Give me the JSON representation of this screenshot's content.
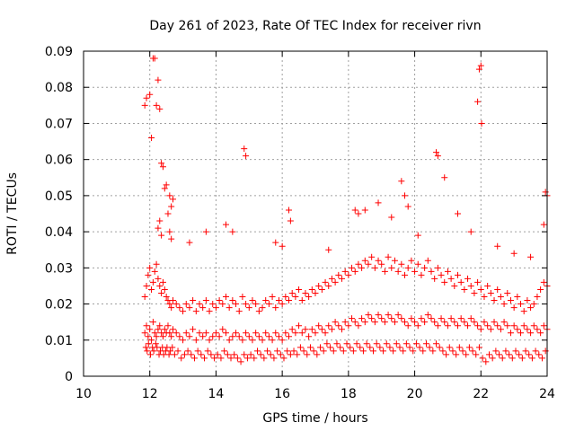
{
  "chart_data": {
    "type": "scatter",
    "title": "Day 261 of 2023, Rate Of TEC Index for receiver rivn",
    "xlabel": "GPS time / hours",
    "ylabel": "ROTI / TECUs",
    "xlim": [
      10,
      24
    ],
    "ylim": [
      0,
      0.09
    ],
    "xticks": [
      10,
      12,
      14,
      16,
      18,
      20,
      22,
      24
    ],
    "yticks": [
      0,
      0.01,
      0.02,
      0.03,
      0.04,
      0.05,
      0.06,
      0.07,
      0.08,
      0.09
    ],
    "xtick_labels": [
      "10",
      "12",
      "14",
      "16",
      "18",
      "20",
      "22",
      "24"
    ],
    "ytick_labels": [
      "0",
      "0.01",
      "0.02",
      "0.03",
      "0.04",
      "0.05",
      "0.06",
      "0.07",
      "0.08",
      "0.09"
    ],
    "grid": true,
    "marker": "+",
    "marker_color": "#ff0000",
    "series": [
      {
        "name": "ROTI",
        "x": [
          11.85,
          11.9,
          11.95,
          12.0,
          12.05,
          12.1,
          12.15,
          12.2,
          12.25,
          12.3,
          12.35,
          12.4,
          12.45,
          12.5,
          12.55,
          12.6,
          12.65,
          12.7,
          12.8,
          12.9,
          13.0,
          13.1,
          13.2,
          13.3,
          13.4,
          13.5,
          13.6,
          13.7,
          13.8,
          13.9,
          14.0,
          14.1,
          14.2,
          14.3,
          14.4,
          14.5,
          14.6,
          14.7,
          14.8,
          14.9,
          15.0,
          15.1,
          15.2,
          15.3,
          15.4,
          15.5,
          15.6,
          15.7,
          15.8,
          15.9,
          16.0,
          16.1,
          16.2,
          16.3,
          16.4,
          16.5,
          16.6,
          16.7,
          16.8,
          16.9,
          17.0,
          17.1,
          17.2,
          17.3,
          17.4,
          17.5,
          17.6,
          17.7,
          17.8,
          17.9,
          18.0,
          18.1,
          18.2,
          18.3,
          18.4,
          18.5,
          18.6,
          18.7,
          18.8,
          18.9,
          19.0,
          19.1,
          19.2,
          19.3,
          19.4,
          19.5,
          19.6,
          19.7,
          19.8,
          19.9,
          20.0,
          20.1,
          20.2,
          20.3,
          20.4,
          20.5,
          20.6,
          20.7,
          20.8,
          20.9,
          21.0,
          21.1,
          21.2,
          21.3,
          21.4,
          21.5,
          21.6,
          21.7,
          21.8,
          21.9,
          22.0,
          22.1,
          22.2,
          22.3,
          22.4,
          22.5,
          22.6,
          22.7,
          22.8,
          22.9,
          23.0,
          23.1,
          23.2,
          23.3,
          23.4,
          23.5,
          23.6,
          23.7,
          23.8,
          23.9,
          24.0,
          11.85,
          11.9,
          11.95,
          12.0,
          12.05,
          12.1,
          12.15,
          12.2,
          12.25,
          12.3,
          12.35,
          12.4,
          12.45,
          12.5,
          12.55,
          12.6,
          12.65,
          12.7,
          12.8,
          12.9,
          13.0,
          13.1,
          13.2,
          13.3,
          13.4,
          13.5,
          13.6,
          13.7,
          13.8,
          13.9,
          14.0,
          14.1,
          14.2,
          14.3,
          14.4,
          14.5,
          14.6,
          14.7,
          14.8,
          14.9,
          15.0,
          15.1,
          15.2,
          15.3,
          15.4,
          15.5,
          15.6,
          15.7,
          15.8,
          15.9,
          16.0,
          16.1,
          16.2,
          16.3,
          16.4,
          16.5,
          16.6,
          16.7,
          16.8,
          16.9,
          17.0,
          17.1,
          17.2,
          17.3,
          17.4,
          17.5,
          17.6,
          17.7,
          17.8,
          17.9,
          18.0,
          18.1,
          18.2,
          18.3,
          18.4,
          18.5,
          18.6,
          18.7,
          18.8,
          18.9,
          19.0,
          19.1,
          19.2,
          19.3,
          19.4,
          19.5,
          19.6,
          19.7,
          19.8,
          19.9,
          20.0,
          20.1,
          20.2,
          20.3,
          20.4,
          20.5,
          20.6,
          20.7,
          20.8,
          20.9,
          21.0,
          21.1,
          21.2,
          21.3,
          21.4,
          21.5,
          21.6,
          21.7,
          21.8,
          21.9,
          22.0,
          22.1,
          22.2,
          22.3,
          22.4,
          22.5,
          22.6,
          22.7,
          22.8,
          22.9,
          23.0,
          23.1,
          23.2,
          23.3,
          23.4,
          23.5,
          23.6,
          23.7,
          23.8,
          23.9,
          24.0,
          11.88,
          11.92,
          11.96,
          12.02,
          12.08,
          12.12,
          12.18,
          12.22,
          12.28,
          12.32,
          12.38,
          12.42,
          12.48,
          12.52,
          12.58,
          12.62,
          12.68,
          12.75,
          12.85,
          12.95,
          13.05,
          13.15,
          13.25,
          13.35,
          13.45,
          13.55,
          13.65,
          13.75,
          13.85,
          13.95,
          14.05,
          14.15,
          14.25,
          14.35,
          14.45,
          14.55,
          14.65,
          14.75,
          14.85,
          14.95,
          15.05,
          15.15,
          15.25,
          15.35,
          15.45,
          15.55,
          15.65,
          15.75,
          15.85,
          15.95,
          16.05,
          16.15,
          16.25,
          16.35,
          16.45,
          16.55,
          16.65,
          16.75,
          16.85,
          16.95,
          17.05,
          17.15,
          17.25,
          17.35,
          17.45,
          17.55,
          17.65,
          17.75,
          17.85,
          17.95,
          18.05,
          18.15,
          18.25,
          18.35,
          18.45,
          18.55,
          18.65,
          18.75,
          18.85,
          18.95,
          19.05,
          19.15,
          19.25,
          19.35,
          19.45,
          19.55,
          19.65,
          19.75,
          19.85,
          19.95,
          20.05,
          20.15,
          20.25,
          20.35,
          20.45,
          20.55,
          20.65,
          20.75,
          20.85,
          20.95,
          21.05,
          21.15,
          21.25,
          21.35,
          21.45,
          21.55,
          21.65,
          21.75,
          21.85,
          21.95,
          22.05,
          22.15,
          22.25,
          22.35,
          22.45,
          22.55,
          22.65,
          22.75,
          22.85,
          22.95,
          23.05,
          23.15,
          23.25,
          23.35,
          23.45,
          23.55,
          23.65,
          23.75,
          23.85,
          23.95,
          11.85,
          11.9,
          12.0,
          12.05,
          12.1,
          12.15,
          12.2,
          12.25,
          12.3,
          12.35,
          12.4,
          12.45,
          12.5,
          12.55,
          12.6,
          12.65,
          14.85,
          14.9,
          16.2,
          16.25,
          18.2,
          18.3,
          19.6,
          19.7,
          20.65,
          20.7,
          21.9,
          21.95,
          22.0,
          22.02,
          23.95,
          24.0,
          12.3,
          12.25,
          12.35,
          12.6,
          12.7,
          12.65,
          13.7,
          13.2,
          14.3,
          14.5,
          15.8,
          16.0,
          17.4,
          18.5,
          18.9,
          19.3,
          19.8,
          20.1,
          20.9,
          21.3,
          21.7,
          22.5,
          23.0,
          23.5,
          23.9
        ],
        "y": [
          0.012,
          0.014,
          0.011,
          0.013,
          0.01,
          0.015,
          0.012,
          0.011,
          0.013,
          0.014,
          0.012,
          0.011,
          0.013,
          0.012,
          0.014,
          0.012,
          0.011,
          0.013,
          0.012,
          0.011,
          0.01,
          0.012,
          0.011,
          0.013,
          0.01,
          0.012,
          0.011,
          0.012,
          0.01,
          0.011,
          0.012,
          0.011,
          0.013,
          0.012,
          0.01,
          0.011,
          0.012,
          0.011,
          0.01,
          0.012,
          0.011,
          0.01,
          0.012,
          0.011,
          0.01,
          0.012,
          0.011,
          0.01,
          0.012,
          0.011,
          0.01,
          0.012,
          0.011,
          0.013,
          0.012,
          0.014,
          0.012,
          0.013,
          0.011,
          0.013,
          0.012,
          0.014,
          0.013,
          0.012,
          0.014,
          0.013,
          0.015,
          0.014,
          0.013,
          0.015,
          0.014,
          0.016,
          0.015,
          0.014,
          0.016,
          0.015,
          0.017,
          0.016,
          0.015,
          0.017,
          0.016,
          0.015,
          0.017,
          0.016,
          0.015,
          0.017,
          0.016,
          0.015,
          0.014,
          0.016,
          0.015,
          0.014,
          0.016,
          0.015,
          0.017,
          0.016,
          0.015,
          0.014,
          0.016,
          0.015,
          0.014,
          0.016,
          0.015,
          0.014,
          0.016,
          0.015,
          0.014,
          0.016,
          0.015,
          0.014,
          0.013,
          0.015,
          0.014,
          0.013,
          0.015,
          0.014,
          0.013,
          0.015,
          0.014,
          0.012,
          0.014,
          0.013,
          0.012,
          0.014,
          0.013,
          0.012,
          0.014,
          0.013,
          0.012,
          0.014,
          0.013,
          0.022,
          0.025,
          0.028,
          0.03,
          0.024,
          0.026,
          0.029,
          0.031,
          0.027,
          0.025,
          0.023,
          0.026,
          0.024,
          0.022,
          0.021,
          0.02,
          0.019,
          0.021,
          0.02,
          0.019,
          0.018,
          0.02,
          0.019,
          0.021,
          0.018,
          0.02,
          0.019,
          0.021,
          0.018,
          0.02,
          0.019,
          0.021,
          0.02,
          0.022,
          0.019,
          0.021,
          0.02,
          0.018,
          0.022,
          0.02,
          0.019,
          0.021,
          0.02,
          0.018,
          0.019,
          0.021,
          0.02,
          0.022,
          0.019,
          0.021,
          0.02,
          0.022,
          0.021,
          0.023,
          0.022,
          0.024,
          0.021,
          0.023,
          0.022,
          0.024,
          0.023,
          0.025,
          0.024,
          0.026,
          0.025,
          0.027,
          0.026,
          0.028,
          0.027,
          0.029,
          0.028,
          0.03,
          0.029,
          0.031,
          0.03,
          0.032,
          0.031,
          0.033,
          0.03,
          0.032,
          0.031,
          0.029,
          0.033,
          0.03,
          0.032,
          0.029,
          0.031,
          0.028,
          0.03,
          0.032,
          0.029,
          0.031,
          0.028,
          0.03,
          0.032,
          0.029,
          0.027,
          0.03,
          0.028,
          0.026,
          0.029,
          0.027,
          0.025,
          0.028,
          0.026,
          0.024,
          0.027,
          0.025,
          0.023,
          0.026,
          0.024,
          0.022,
          0.025,
          0.023,
          0.021,
          0.024,
          0.022,
          0.02,
          0.023,
          0.021,
          0.019,
          0.022,
          0.02,
          0.018,
          0.021,
          0.019,
          0.02,
          0.022,
          0.024,
          0.026,
          0.025,
          0.008,
          0.007,
          0.009,
          0.006,
          0.008,
          0.007,
          0.009,
          0.008,
          0.006,
          0.007,
          0.008,
          0.006,
          0.007,
          0.008,
          0.006,
          0.007,
          0.008,
          0.006,
          0.007,
          0.005,
          0.006,
          0.007,
          0.006,
          0.005,
          0.007,
          0.006,
          0.005,
          0.007,
          0.006,
          0.005,
          0.006,
          0.005,
          0.007,
          0.006,
          0.005,
          0.006,
          0.005,
          0.004,
          0.006,
          0.005,
          0.006,
          0.005,
          0.007,
          0.006,
          0.005,
          0.007,
          0.006,
          0.005,
          0.007,
          0.006,
          0.005,
          0.007,
          0.006,
          0.007,
          0.006,
          0.008,
          0.007,
          0.006,
          0.008,
          0.007,
          0.006,
          0.008,
          0.007,
          0.009,
          0.008,
          0.007,
          0.009,
          0.008,
          0.007,
          0.009,
          0.008,
          0.007,
          0.009,
          0.008,
          0.007,
          0.009,
          0.008,
          0.007,
          0.009,
          0.008,
          0.007,
          0.009,
          0.008,
          0.007,
          0.009,
          0.008,
          0.007,
          0.009,
          0.008,
          0.007,
          0.009,
          0.008,
          0.007,
          0.009,
          0.008,
          0.007,
          0.009,
          0.008,
          0.007,
          0.006,
          0.008,
          0.007,
          0.006,
          0.008,
          0.007,
          0.006,
          0.008,
          0.007,
          0.006,
          0.008,
          0.005,
          0.004,
          0.006,
          0.005,
          0.007,
          0.006,
          0.005,
          0.007,
          0.006,
          0.005,
          0.007,
          0.006,
          0.005,
          0.007,
          0.006,
          0.005,
          0.007,
          0.006,
          0.005,
          0.007,
          0.075,
          0.077,
          0.078,
          0.066,
          0.088,
          0.088,
          0.075,
          0.082,
          0.074,
          0.059,
          0.058,
          0.052,
          0.053,
          0.045,
          0.04,
          0.038,
          0.063,
          0.061,
          0.046,
          0.043,
          0.046,
          0.045,
          0.054,
          0.05,
          0.062,
          0.061,
          0.076,
          0.085,
          0.086,
          0.07,
          0.051,
          0.05,
          0.043,
          0.041,
          0.039,
          0.05,
          0.049,
          0.047,
          0.04,
          0.037,
          0.042,
          0.04,
          0.037,
          0.036,
          0.035,
          0.046,
          0.048,
          0.044,
          0.047,
          0.039,
          0.055,
          0.045,
          0.04,
          0.036,
          0.034,
          0.033,
          0.042
        ]
      }
    ]
  }
}
